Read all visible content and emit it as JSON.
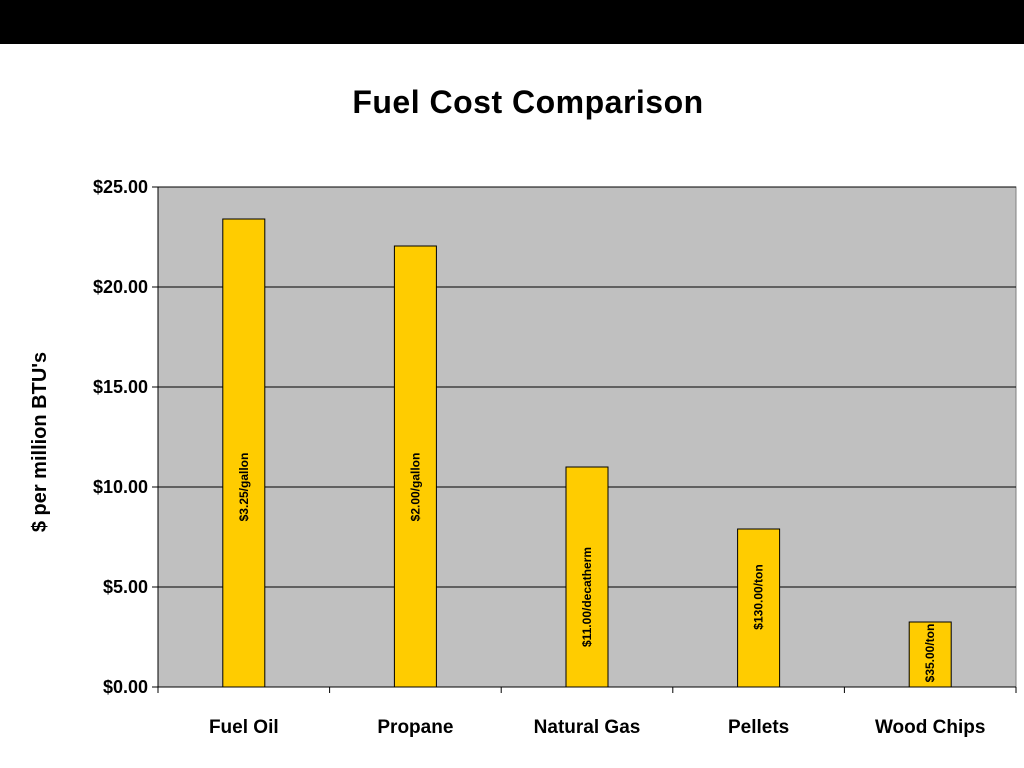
{
  "chart_data": {
    "type": "bar",
    "title": "Fuel Cost Comparison",
    "xlabel": "",
    "ylabel": "$ per million BTU's",
    "ylim": [
      0,
      25
    ],
    "yticks": [
      0,
      5,
      10,
      15,
      20,
      25
    ],
    "ytick_labels": [
      "$0.00",
      "$5.00",
      "$10.00",
      "$15.00",
      "$20.00",
      "$25.00"
    ],
    "categories": [
      "Fuel Oil",
      "Propane",
      "Natural Gas",
      "Pellets",
      "Wood Chips"
    ],
    "values": [
      23.4,
      22.05,
      11.0,
      7.9,
      3.25
    ],
    "bar_labels": [
      "$3.25/gallon",
      "$2.00/gallon",
      "$11.00/decatherm",
      "$130.00/ton",
      "$35.00/ton"
    ],
    "grid": true,
    "legend": false,
    "colors": {
      "bar": "#FFCC00",
      "plot_background": "#C0C0C0",
      "top_bar": "#000000"
    }
  }
}
